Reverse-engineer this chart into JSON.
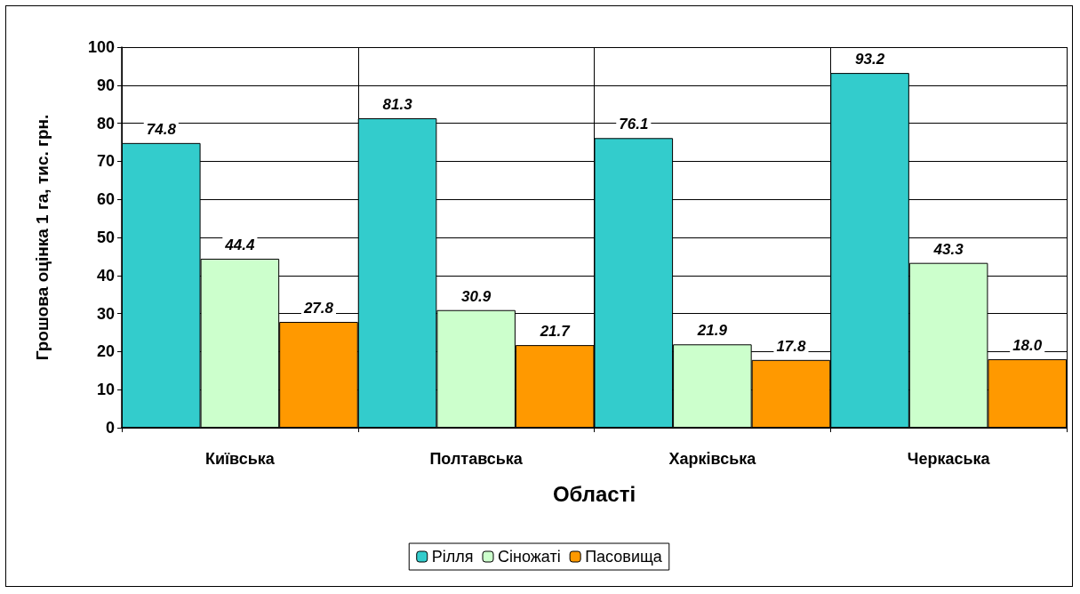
{
  "chart_data": {
    "type": "bar",
    "ylabel": "Грошова оцінка 1 га, тис. грн.",
    "xlabel": "Області",
    "categories": [
      "Київська",
      "Полтавська",
      "Харківська",
      "Черкаська"
    ],
    "series": [
      {
        "name": "Рілля",
        "color": "#33cccc",
        "values": [
          74.8,
          81.3,
          76.1,
          93.2
        ],
        "value_labels": [
          "74.8",
          "81.3",
          "76.1",
          "93.2"
        ]
      },
      {
        "name": "Сіножаті",
        "color": "#ccffcc",
        "values": [
          44.4,
          30.9,
          21.9,
          43.3
        ],
        "value_labels": [
          "44.4",
          "30.9",
          "21.9",
          "43.3"
        ]
      },
      {
        "name": "Пасовища",
        "color": "#ff9900",
        "values": [
          27.8,
          21.7,
          17.8,
          18.0
        ],
        "value_labels": [
          "27.8",
          "21.7",
          "17.8",
          "18.0"
        ]
      }
    ],
    "ylim": [
      0,
      100
    ],
    "yticks": [
      0,
      10,
      20,
      30,
      40,
      50,
      60,
      70,
      80,
      90,
      100
    ],
    "grid": true,
    "legend": "bottom"
  }
}
